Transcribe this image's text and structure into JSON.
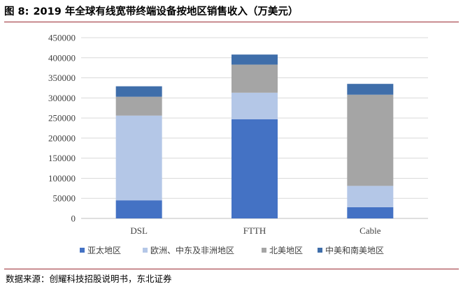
{
  "figure": {
    "label": "图 8:",
    "title": "2019 年全球有线宽带终端设备按地区销售收入（万美元）",
    "source": "数据来源：创耀科技招股说明书，东北证券"
  },
  "chart_data": {
    "type": "bar",
    "stacked": true,
    "categories": [
      "DSL",
      "FTTH",
      "Cable"
    ],
    "series": [
      {
        "name": "亚太地区",
        "color": "#4472C4",
        "values": [
          45000,
          247000,
          28000
        ]
      },
      {
        "name": "欧洲、中东及非洲地区",
        "color": "#B4C7E7",
        "values": [
          211000,
          66000,
          53000
        ]
      },
      {
        "name": "北美地区",
        "color": "#A5A5A5",
        "values": [
          47000,
          70000,
          227000
        ]
      },
      {
        "name": "中美和南美地区",
        "color": "#3F6EAA",
        "values": [
          26000,
          25000,
          27000
        ]
      }
    ],
    "ylim": [
      0,
      450000
    ],
    "yticks": [
      "0",
      "50000",
      "100000",
      "150000",
      "200000",
      "250000",
      "300000",
      "350000",
      "400000",
      "450000"
    ],
    "grid": true,
    "legend": "bottom"
  }
}
